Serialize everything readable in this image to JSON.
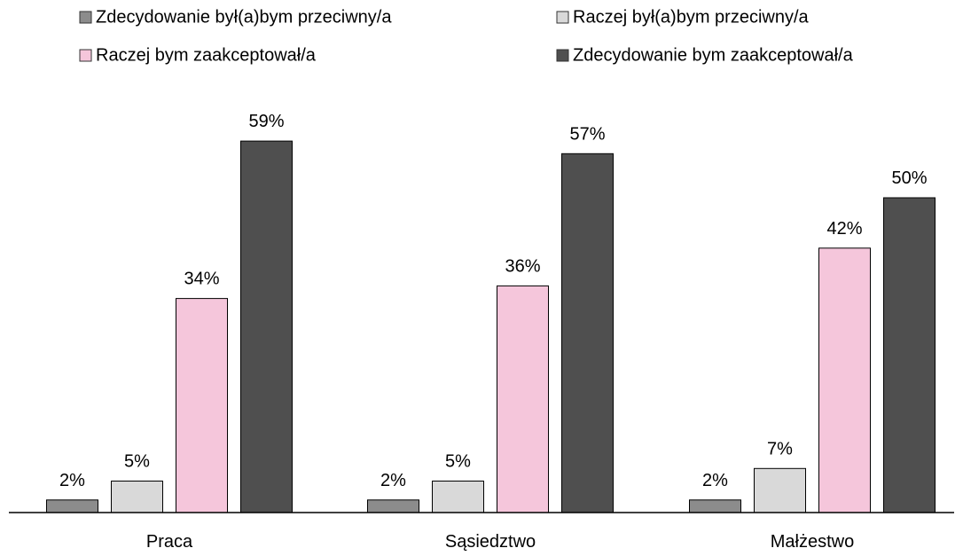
{
  "chart_data": {
    "type": "bar",
    "categories": [
      "Praca",
      "Sąsiedztwo",
      "Małżestwo"
    ],
    "series": [
      {
        "name": "Zdecydowanie był(a)bym przeciwny/a",
        "values": [
          2,
          2,
          2
        ],
        "color": "#8c8c8c"
      },
      {
        "name": "Raczej był(a)bym przeciwny/a",
        "values": [
          5,
          5,
          7
        ],
        "color": "#d9d9d9"
      },
      {
        "name": "Raczej bym zaakceptował/a",
        "values": [
          34,
          36,
          42
        ],
        "color": "#f5c6db"
      },
      {
        "name": "Zdecydowanie bym zaakceptował/a",
        "values": [
          59,
          57,
          50
        ],
        "color": "#4f4f4f"
      }
    ],
    "value_suffix": "%",
    "ylim": [
      0,
      60
    ],
    "legend_position": "top",
    "grid": false,
    "title": "",
    "xlabel": "",
    "ylabel": ""
  }
}
